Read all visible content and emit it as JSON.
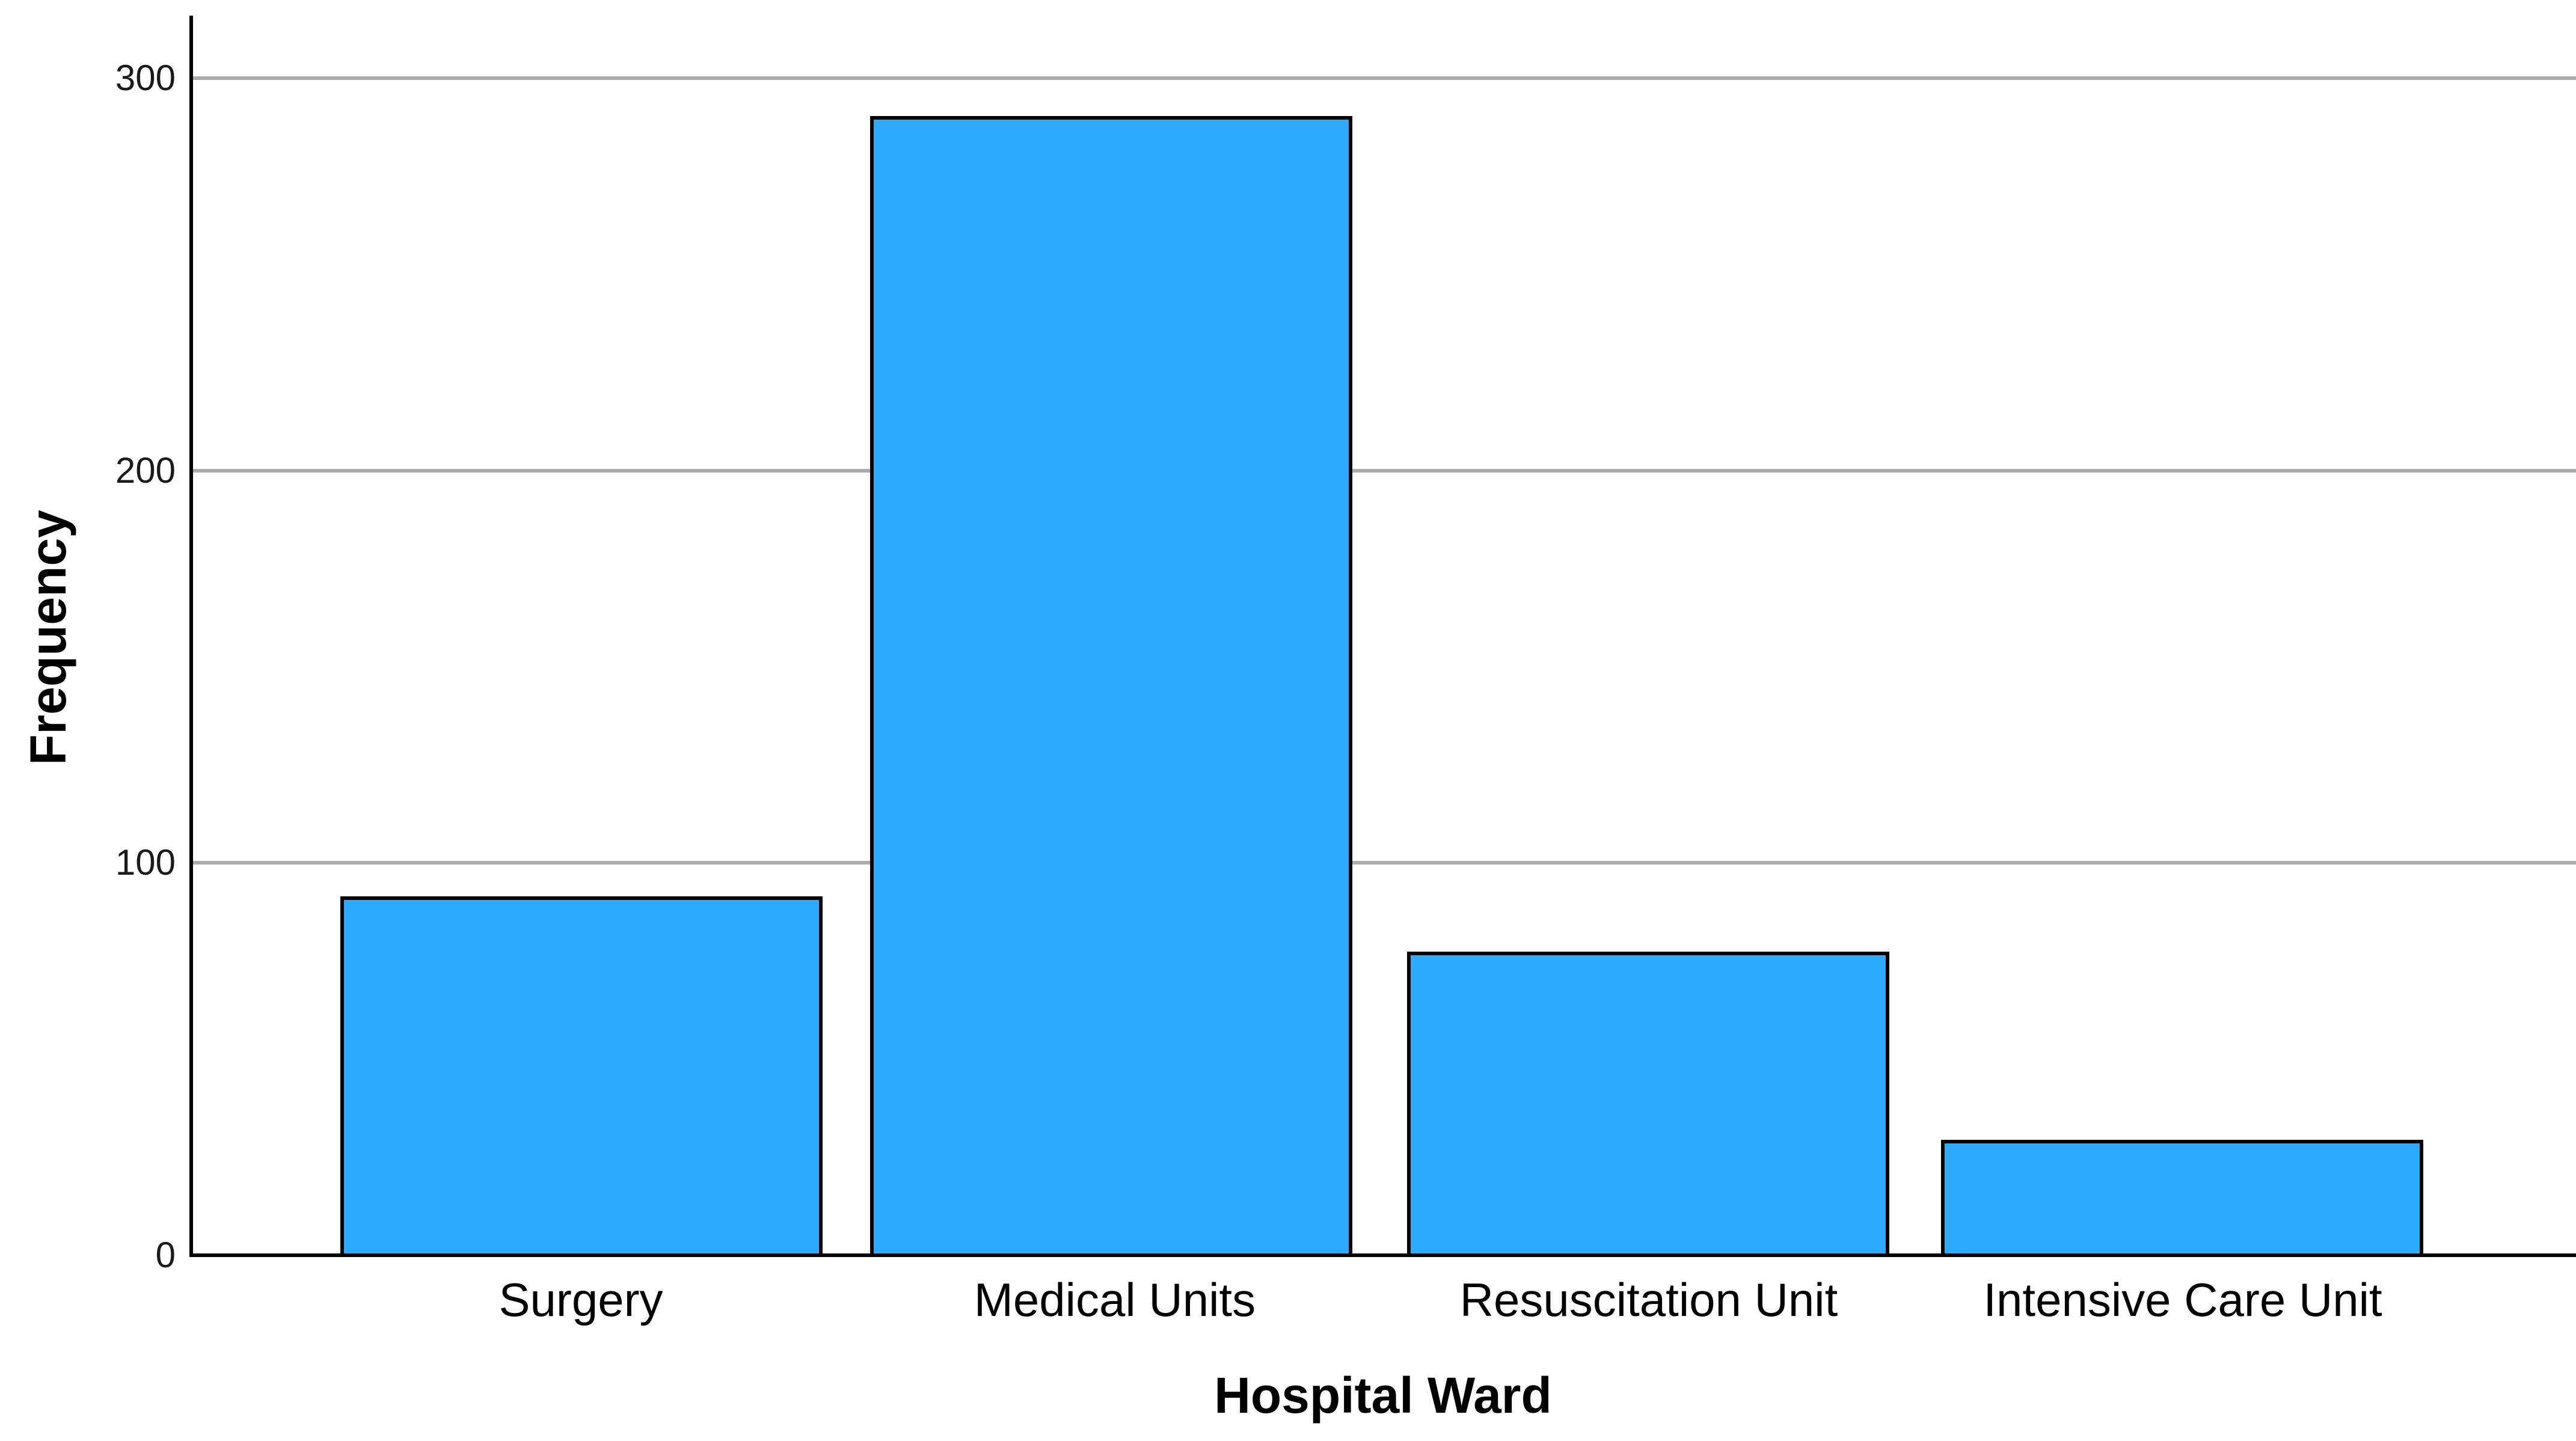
{
  "chart_data": {
    "type": "bar",
    "title": "",
    "categories": [
      "Surgery",
      "Medical Units",
      "Resuscitation Unit",
      "Intensive Care Unit"
    ],
    "values": [
      91,
      290,
      77,
      29
    ],
    "xlabel": "Hospital Ward",
    "ylabel": "Frequency",
    "ylim": [
      0,
      316
    ],
    "yticks": [
      0,
      100,
      200,
      300
    ],
    "ytick_labels": [
      "0",
      "100",
      "200",
      "300"
    ],
    "grid": "horizontal-gridlines-on",
    "legend_position": "none",
    "bar_fill_color": "#2EACFB",
    "bar_border_color": "#000000",
    "gridline_color": "#ABABAB",
    "axis_line_color": "#000000",
    "background_color": "#FFFFFF"
  }
}
